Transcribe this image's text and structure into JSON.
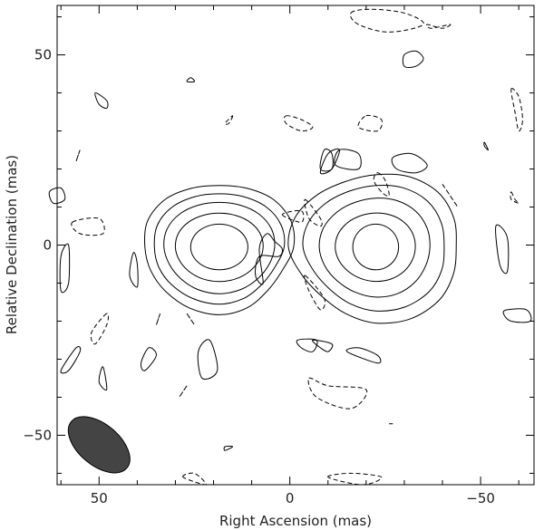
{
  "chart_data": {
    "type": "contour",
    "title": "",
    "xlabel": "Right Ascension  (mas)",
    "ylabel": "Relative Declination  (mas)",
    "xlim": [
      61,
      -64
    ],
    "ylim": [
      -63,
      63
    ],
    "x_ticks": [
      50,
      0,
      -50
    ],
    "y_ticks": [
      50,
      0,
      -50
    ],
    "x_tick_labels": [
      "50",
      "0",
      "−50"
    ],
    "y_tick_labels": [
      "50",
      "0",
      "−50"
    ],
    "grid": false,
    "components": [
      {
        "name": "",
        "x": 18.5,
        "y": -0.5,
        "rx": [
          7.5,
          11.5,
          14.5,
          17,
          19.5
        ],
        "ry": [
          6,
          9,
          12,
          14.5,
          17
        ]
      },
      {
        "name": "",
        "x": -22.5,
        "y": -0.5,
        "rx": [
          6,
          10.5,
          14.5,
          18.5,
          22
        ],
        "ry": [
          6,
          9,
          13,
          16.5,
          19.5
        ]
      }
    ],
    "positive_contours": [
      [
        [
          48,
          38
        ],
        [
          51,
          40
        ],
        [
          50,
          37
        ],
        [
          48,
          36
        ]
      ],
      [
        [
          26,
          44
        ],
        [
          25,
          43
        ],
        [
          27,
          43
        ]
      ],
      [
        [
          -30,
          50
        ],
        [
          -33,
          51
        ],
        [
          -35,
          49
        ],
        [
          -33,
          47
        ],
        [
          -30,
          47
        ]
      ],
      [
        [
          -9,
          25
        ],
        [
          -11,
          24
        ],
        [
          -11,
          20
        ],
        [
          -8,
          20
        ]
      ],
      [
        [
          -10,
          24
        ],
        [
          -13,
          25
        ],
        [
          -11,
          20
        ],
        [
          -8,
          19
        ]
      ],
      [
        [
          -13,
          25
        ],
        [
          -18,
          24
        ],
        [
          -18,
          20
        ],
        [
          -12,
          21
        ]
      ],
      [
        [
          -27,
          23
        ],
        [
          -32,
          24
        ],
        [
          -36,
          21
        ],
        [
          -33,
          19
        ],
        [
          -28,
          20
        ]
      ],
      [
        [
          -51,
          27
        ],
        [
          -52,
          25
        ],
        [
          -51,
          26
        ]
      ],
      [
        [
          60,
          15
        ],
        [
          63,
          14
        ],
        [
          62,
          11
        ],
        [
          59,
          12
        ]
      ],
      [
        [
          58,
          0
        ],
        [
          60,
          -3
        ],
        [
          60,
          -12
        ],
        [
          58,
          -10
        ]
      ],
      [
        [
          41,
          -2
        ],
        [
          42,
          -8
        ],
        [
          40,
          -11
        ],
        [
          40,
          -5
        ]
      ],
      [
        [
          7,
          -10
        ],
        [
          9,
          -8
        ],
        [
          8,
          -3
        ],
        [
          3,
          -3
        ],
        [
          2,
          -1
        ],
        [
          4,
          1
        ],
        [
          6,
          3
        ],
        [
          8,
          -1
        ]
      ],
      [
        [
          -54,
          5
        ],
        [
          -57,
          2
        ],
        [
          -57,
          -7
        ],
        [
          -55,
          -5
        ]
      ],
      [
        [
          -56,
          -18
        ],
        [
          -58,
          -20
        ],
        [
          -63,
          -20
        ],
        [
          -62,
          -17
        ],
        [
          -57,
          -17
        ]
      ],
      [
        [
          37,
          -27
        ],
        [
          39,
          -31
        ],
        [
          38,
          -33
        ],
        [
          35,
          -29
        ]
      ],
      [
        [
          56,
          -27
        ],
        [
          60,
          -33
        ],
        [
          58,
          -33
        ],
        [
          55,
          -28
        ]
      ],
      [
        [
          21,
          -25
        ],
        [
          24,
          -28
        ],
        [
          23,
          -35
        ],
        [
          19,
          -33
        ]
      ],
      [
        [
          49,
          -32
        ],
        [
          50,
          -36
        ],
        [
          48,
          -38
        ]
      ],
      [
        [
          -2,
          -25
        ],
        [
          -3,
          -27
        ],
        [
          -6,
          -28
        ],
        [
          -7,
          -25
        ]
      ],
      [
        [
          -6,
          -25
        ],
        [
          -8,
          -27
        ],
        [
          -10,
          -28
        ],
        [
          -11,
          -26
        ]
      ],
      [
        [
          -15,
          -28
        ],
        [
          -18,
          -27
        ],
        [
          -23,
          -29
        ],
        [
          -23,
          -31
        ]
      ],
      [
        [
          -26,
          -47
        ],
        [
          -27,
          -47
        ]
      ],
      [
        [
          17,
          -53
        ],
        [
          15,
          -53
        ],
        [
          17,
          -54
        ]
      ]
    ],
    "negative_contours": [
      [
        [
          -16,
          61
        ],
        [
          -21,
          62
        ],
        [
          -30,
          61
        ],
        [
          -35,
          58
        ],
        [
          -26,
          56
        ],
        [
          -18,
          58
        ]
      ],
      [
        [
          -42,
          58
        ],
        [
          -40,
          57
        ],
        [
          -36,
          58
        ],
        [
          -37,
          57
        ]
      ],
      [
        [
          -58,
          41
        ],
        [
          -60,
          39
        ],
        [
          -61,
          33
        ],
        [
          -60,
          30
        ],
        [
          -59,
          35
        ]
      ],
      [
        [
          15,
          34
        ],
        [
          16,
          32
        ],
        [
          17,
          32
        ]
      ],
      [
        [
          1,
          34
        ],
        [
          -3,
          33
        ],
        [
          -6,
          31
        ],
        [
          -3,
          30
        ],
        [
          1,
          32
        ]
      ],
      [
        [
          -20,
          34
        ],
        [
          -24,
          33
        ],
        [
          -23,
          30
        ],
        [
          -18,
          31
        ]
      ],
      [
        [
          55,
          25
        ],
        [
          56,
          22
        ]
      ],
      [
        [
          -23,
          19
        ],
        [
          -25,
          17
        ],
        [
          -26,
          13
        ],
        [
          -24,
          14
        ],
        [
          -22,
          17
        ]
      ],
      [
        [
          -40,
          16
        ],
        [
          -42,
          13
        ],
        [
          -44,
          10
        ],
        [
          -42,
          13
        ]
      ],
      [
        [
          -58,
          14
        ],
        [
          -59,
          12
        ],
        [
          -60,
          11
        ],
        [
          -58,
          12
        ]
      ],
      [
        [
          57,
          6
        ],
        [
          50,
          7
        ],
        [
          49,
          3
        ],
        [
          55,
          3
        ]
      ],
      [
        [
          -4,
          12
        ],
        [
          -8,
          7
        ],
        [
          -8,
          5
        ],
        [
          -5,
          7
        ]
      ],
      [
        [
          2,
          8
        ],
        [
          -3,
          6
        ],
        [
          -3,
          9
        ]
      ],
      [
        [
          -4,
          -8
        ],
        [
          -9,
          -14
        ],
        [
          -8,
          -17
        ],
        [
          -5,
          -12
        ]
      ],
      [
        [
          48,
          -18
        ],
        [
          52,
          -23
        ],
        [
          51,
          -26
        ],
        [
          48,
          -21
        ]
      ],
      [
        [
          34,
          -18
        ],
        [
          35,
          -21
        ]
      ],
      [
        [
          27,
          -18
        ],
        [
          25,
          -21
        ]
      ],
      [
        [
          -5,
          -35
        ],
        [
          -10,
          -37
        ],
        [
          -20,
          -38
        ],
        [
          -16,
          -43
        ],
        [
          -7,
          -40
        ]
      ],
      [
        [
          27,
          -37
        ],
        [
          29,
          -40
        ]
      ],
      [
        [
          28,
          -61
        ],
        [
          25,
          -60
        ],
        [
          22,
          -63
        ]
      ],
      [
        [
          -10,
          -61
        ],
        [
          -16,
          -60
        ],
        [
          -24,
          -61
        ],
        [
          -19,
          -63
        ]
      ]
    ],
    "beam": {
      "x": 50,
      "y": -52.5,
      "major": 9.5,
      "minor": 5.4,
      "pa_deg": 40
    }
  }
}
